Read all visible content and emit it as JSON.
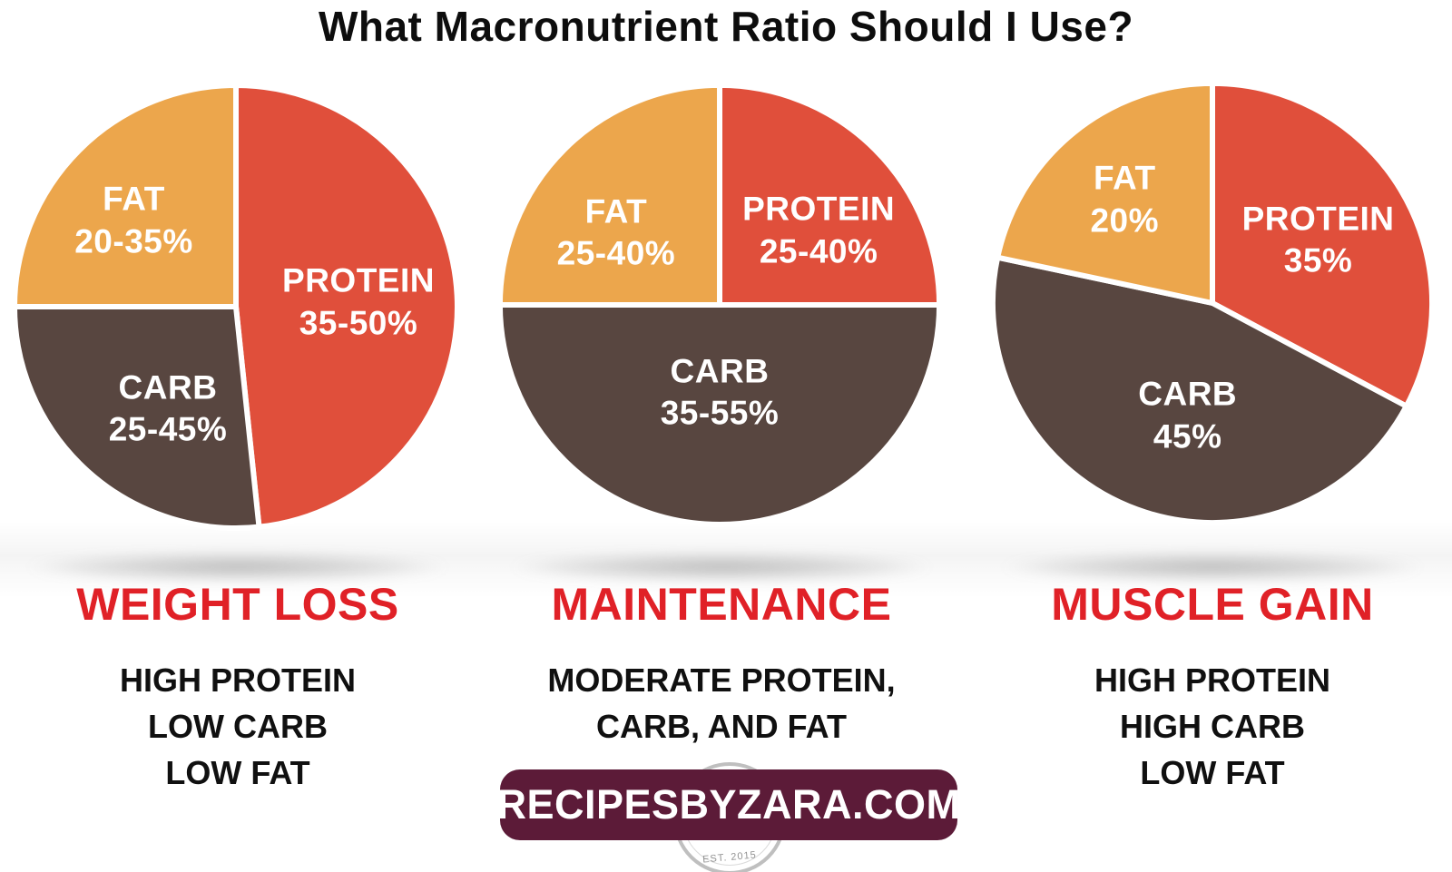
{
  "page": {
    "title": "What Macronutrient Ratio Should I Use?"
  },
  "colors": {
    "protein_red": "#e04f3b",
    "carb_brown": "#584640",
    "fat_orange": "#eca64c",
    "heading_red": "#e02127",
    "body_black": "#101010",
    "badge_bg": "#5c1b38",
    "badge_text": "#ffffff",
    "slice_label_white": "#ffffff"
  },
  "branding": {
    "badge_text": "RECIPESBYZARA.COM",
    "stamp_text": "EST. 2015",
    "badge_bg": "#5c1b38"
  },
  "chart_data": [
    {
      "type": "pie",
      "goal": "WEIGHT LOSS",
      "description_lines": [
        "HIGH PROTEIN",
        "LOW CARB",
        "LOW FAT"
      ],
      "legend": "none",
      "slices": [
        {
          "name": "PROTEIN",
          "value_text": "35-50%",
          "value_min": 35,
          "value_max": 50,
          "color": "#e04f3b",
          "start_angle": 0,
          "end_angle": 174,
          "label_x_pct": 77,
          "label_y_pct": 49
        },
        {
          "name": "CARB",
          "value_text": "25-45%",
          "value_min": 25,
          "value_max": 45,
          "color": "#584640",
          "start_angle": 174,
          "end_angle": 270,
          "label_x_pct": 35,
          "label_y_pct": 72.5
        },
        {
          "name": "FAT",
          "value_text": "20-35%",
          "value_min": 20,
          "value_max": 35,
          "color": "#eca64c",
          "start_angle": 270,
          "end_angle": 360,
          "label_x_pct": 27.5,
          "label_y_pct": 31
        }
      ]
    },
    {
      "type": "pie",
      "goal": "MAINTENANCE",
      "description_lines": [
        "MODERATE PROTEIN,",
        "CARB, AND FAT"
      ],
      "legend": "none",
      "slices": [
        {
          "name": "PROTEIN",
          "value_text": "25-40%",
          "value_min": 25,
          "value_max": 40,
          "color": "#e04f3b",
          "start_angle": 0,
          "end_angle": 90,
          "label_x_pct": 72,
          "label_y_pct": 33.5
        },
        {
          "name": "CARB",
          "value_text": "35-55%",
          "value_min": 35,
          "value_max": 55,
          "color": "#584640",
          "start_angle": 90,
          "end_angle": 270,
          "label_x_pct": 50,
          "label_y_pct": 69.5
        },
        {
          "name": "FAT",
          "value_text": "25-40%",
          "value_min": 25,
          "value_max": 40,
          "color": "#eca64c",
          "start_angle": 270,
          "end_angle": 360,
          "label_x_pct": 27,
          "label_y_pct": 34
        }
      ]
    },
    {
      "type": "pie",
      "goal": "MUSCLE GAIN",
      "description_lines": [
        "HIGH PROTEIN",
        "HIGH CARB",
        "LOW FAT"
      ],
      "legend": "none",
      "slices": [
        {
          "name": "PROTEIN",
          "value_text": "35%",
          "value_min": 35,
          "value_max": 35,
          "color": "#e04f3b",
          "start_angle": 0,
          "end_angle": 118,
          "label_x_pct": 73.5,
          "label_y_pct": 36
        },
        {
          "name": "CARB",
          "value_text": "45%",
          "value_min": 45,
          "value_max": 45,
          "color": "#584640",
          "start_angle": 118,
          "end_angle": 282,
          "label_x_pct": 44.5,
          "label_y_pct": 75
        },
        {
          "name": "FAT",
          "value_text": "20%",
          "value_min": 20,
          "value_max": 20,
          "color": "#eca64c",
          "start_angle": 282,
          "end_angle": 360,
          "label_x_pct": 30.5,
          "label_y_pct": 27
        }
      ]
    }
  ]
}
